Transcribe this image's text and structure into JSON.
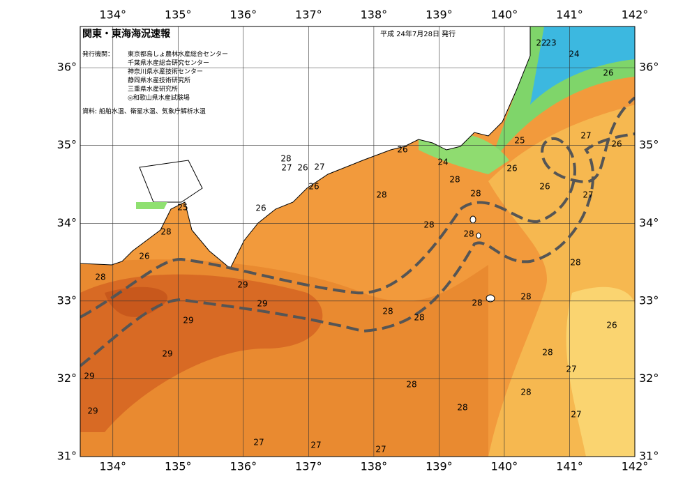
{
  "header": {
    "title": "関東・東海海況速報",
    "date": "平成 24年7月28日 発行",
    "issuer_label": "発行機関：",
    "issuers": [
      "東京都島しょ農林水産総合センター",
      "千葉県水産総合研究センター",
      "神奈川県水産技術センター",
      "静岡県水産技術研究所",
      "三重県水産研究所",
      "◎和歌山県水産試験場"
    ],
    "source": "資料: 船舶水温、衛星水温、気象庁解析水温"
  },
  "map": {
    "xlim": [
      133.5,
      142
    ],
    "ylim": [
      31,
      36.53
    ],
    "xticks": [
      {
        "value": 134,
        "label": "134°"
      },
      {
        "value": 135,
        "label": "135°"
      },
      {
        "value": 136,
        "label": "136°"
      },
      {
        "value": 137,
        "label": "137°"
      },
      {
        "value": 138,
        "label": "138°"
      },
      {
        "value": 139,
        "label": "139°"
      },
      {
        "value": 140,
        "label": "140°"
      },
      {
        "value": 141,
        "label": "141°"
      },
      {
        "value": 142,
        "label": "142°"
      }
    ],
    "yticks": [
      {
        "value": 31,
        "label": "31°"
      },
      {
        "value": 32,
        "label": "32°"
      },
      {
        "value": 33,
        "label": "33°"
      },
      {
        "value": 34,
        "label": "34°"
      },
      {
        "value": 35,
        "label": "35°"
      },
      {
        "value": 36,
        "label": "36°"
      }
    ],
    "contour_labels": [
      22,
      23,
      24,
      26,
      25,
      27,
      26,
      26,
      26,
      27,
      24,
      26,
      28,
      28,
      28,
      28,
      28,
      28,
      27,
      26,
      27,
      26,
      26,
      25,
      28,
      26,
      28,
      29,
      29,
      29,
      29,
      29,
      29,
      28,
      28,
      28,
      28,
      28,
      26,
      28,
      27,
      28,
      28,
      28,
      27,
      27,
      27,
      27
    ]
  }
}
